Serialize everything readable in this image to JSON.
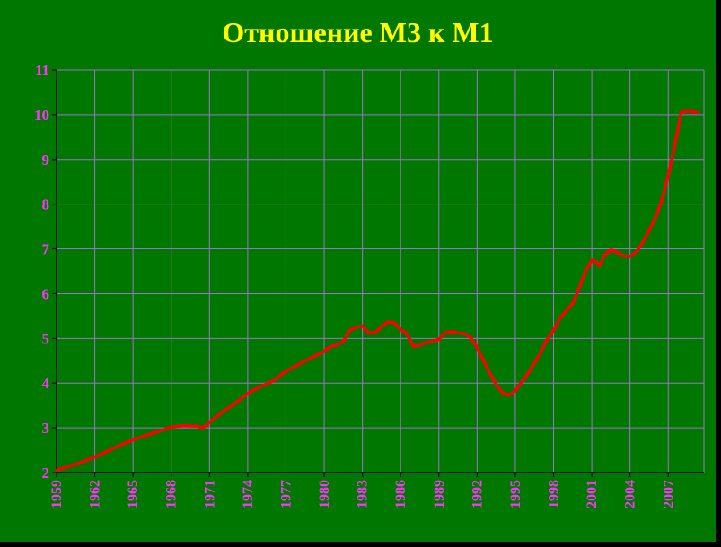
{
  "colors": {
    "background": "#007800",
    "outer_border": "#000000",
    "title": "#ffff00",
    "tick_labels": "#ff33ff",
    "grid": "#a070d0",
    "axis": "#000000",
    "line": "#ff0000"
  },
  "chart_data": {
    "type": "line",
    "title": "Отношение М3 к М1",
    "xlabel": "",
    "ylabel": "",
    "xlim": [
      1959,
      2009.8
    ],
    "ylim": [
      2,
      11
    ],
    "grid": true,
    "legend": "none",
    "y_ticks": [
      "2",
      "3",
      "4",
      "5",
      "6",
      "7",
      "8",
      "9",
      "10",
      "11"
    ],
    "x_ticks": [
      "1959",
      "1962",
      "1965",
      "1968",
      "1971",
      "1974",
      "1977",
      "1980",
      "1983",
      "1986",
      "1989",
      "1992",
      "1995",
      "1998",
      "2001",
      "2004",
      "2007"
    ],
    "series": [
      {
        "x": [
          1959.0,
          1960.0,
          1961.0,
          1962.0,
          1963.0,
          1964.0,
          1965.0,
          1966.0,
          1967.0,
          1968.0,
          1969.0,
          1970.0,
          1970.5,
          1971.0,
          1972.0,
          1973.0,
          1974.0,
          1975.0,
          1976.0,
          1977.0,
          1978.0,
          1979.0,
          1980.0,
          1980.5,
          1981.0,
          1981.5,
          1982.0,
          1982.5,
          1983.0,
          1983.5,
          1984.0,
          1984.5,
          1985.0,
          1985.5,
          1986.0,
          1986.5,
          1987.0,
          1987.5,
          1988.0,
          1988.5,
          1989.0,
          1989.5,
          1990.0,
          1990.5,
          1991.0,
          1991.5,
          1992.0,
          1992.5,
          1993.0,
          1993.5,
          1994.0,
          1994.5,
          1995.0,
          1995.5,
          1996.0,
          1996.5,
          1997.0,
          1997.5,
          1998.0,
          1998.5,
          1999.0,
          1999.5,
          2000.0,
          2000.5,
          2001.0,
          2001.3,
          2001.6,
          2002.0,
          2002.5,
          2003.0,
          2003.5,
          2004.0,
          2004.5,
          2005.0,
          2005.5,
          2006.0,
          2006.5,
          2007.0,
          2007.5,
          2008.0,
          2008.5,
          2009.3
        ],
        "values": [
          2.05,
          2.14,
          2.24,
          2.35,
          2.48,
          2.62,
          2.73,
          2.83,
          2.92,
          3.02,
          3.05,
          3.04,
          3.0,
          3.12,
          3.35,
          3.55,
          3.77,
          3.92,
          4.05,
          4.27,
          4.42,
          4.57,
          4.71,
          4.82,
          4.85,
          4.93,
          5.18,
          5.25,
          5.28,
          5.12,
          5.13,
          5.26,
          5.37,
          5.35,
          5.2,
          5.1,
          4.82,
          4.85,
          4.9,
          4.94,
          4.98,
          5.13,
          5.15,
          5.12,
          5.1,
          5.02,
          4.8,
          4.5,
          4.22,
          3.96,
          3.78,
          3.73,
          3.83,
          4.02,
          4.22,
          4.45,
          4.7,
          4.98,
          5.18,
          5.45,
          5.62,
          5.78,
          6.12,
          6.5,
          6.75,
          6.72,
          6.62,
          6.86,
          6.98,
          6.92,
          6.84,
          6.83,
          6.93,
          7.15,
          7.42,
          7.7,
          8.1,
          8.65,
          9.3,
          10.05,
          10.08,
          10.05
        ]
      }
    ]
  }
}
